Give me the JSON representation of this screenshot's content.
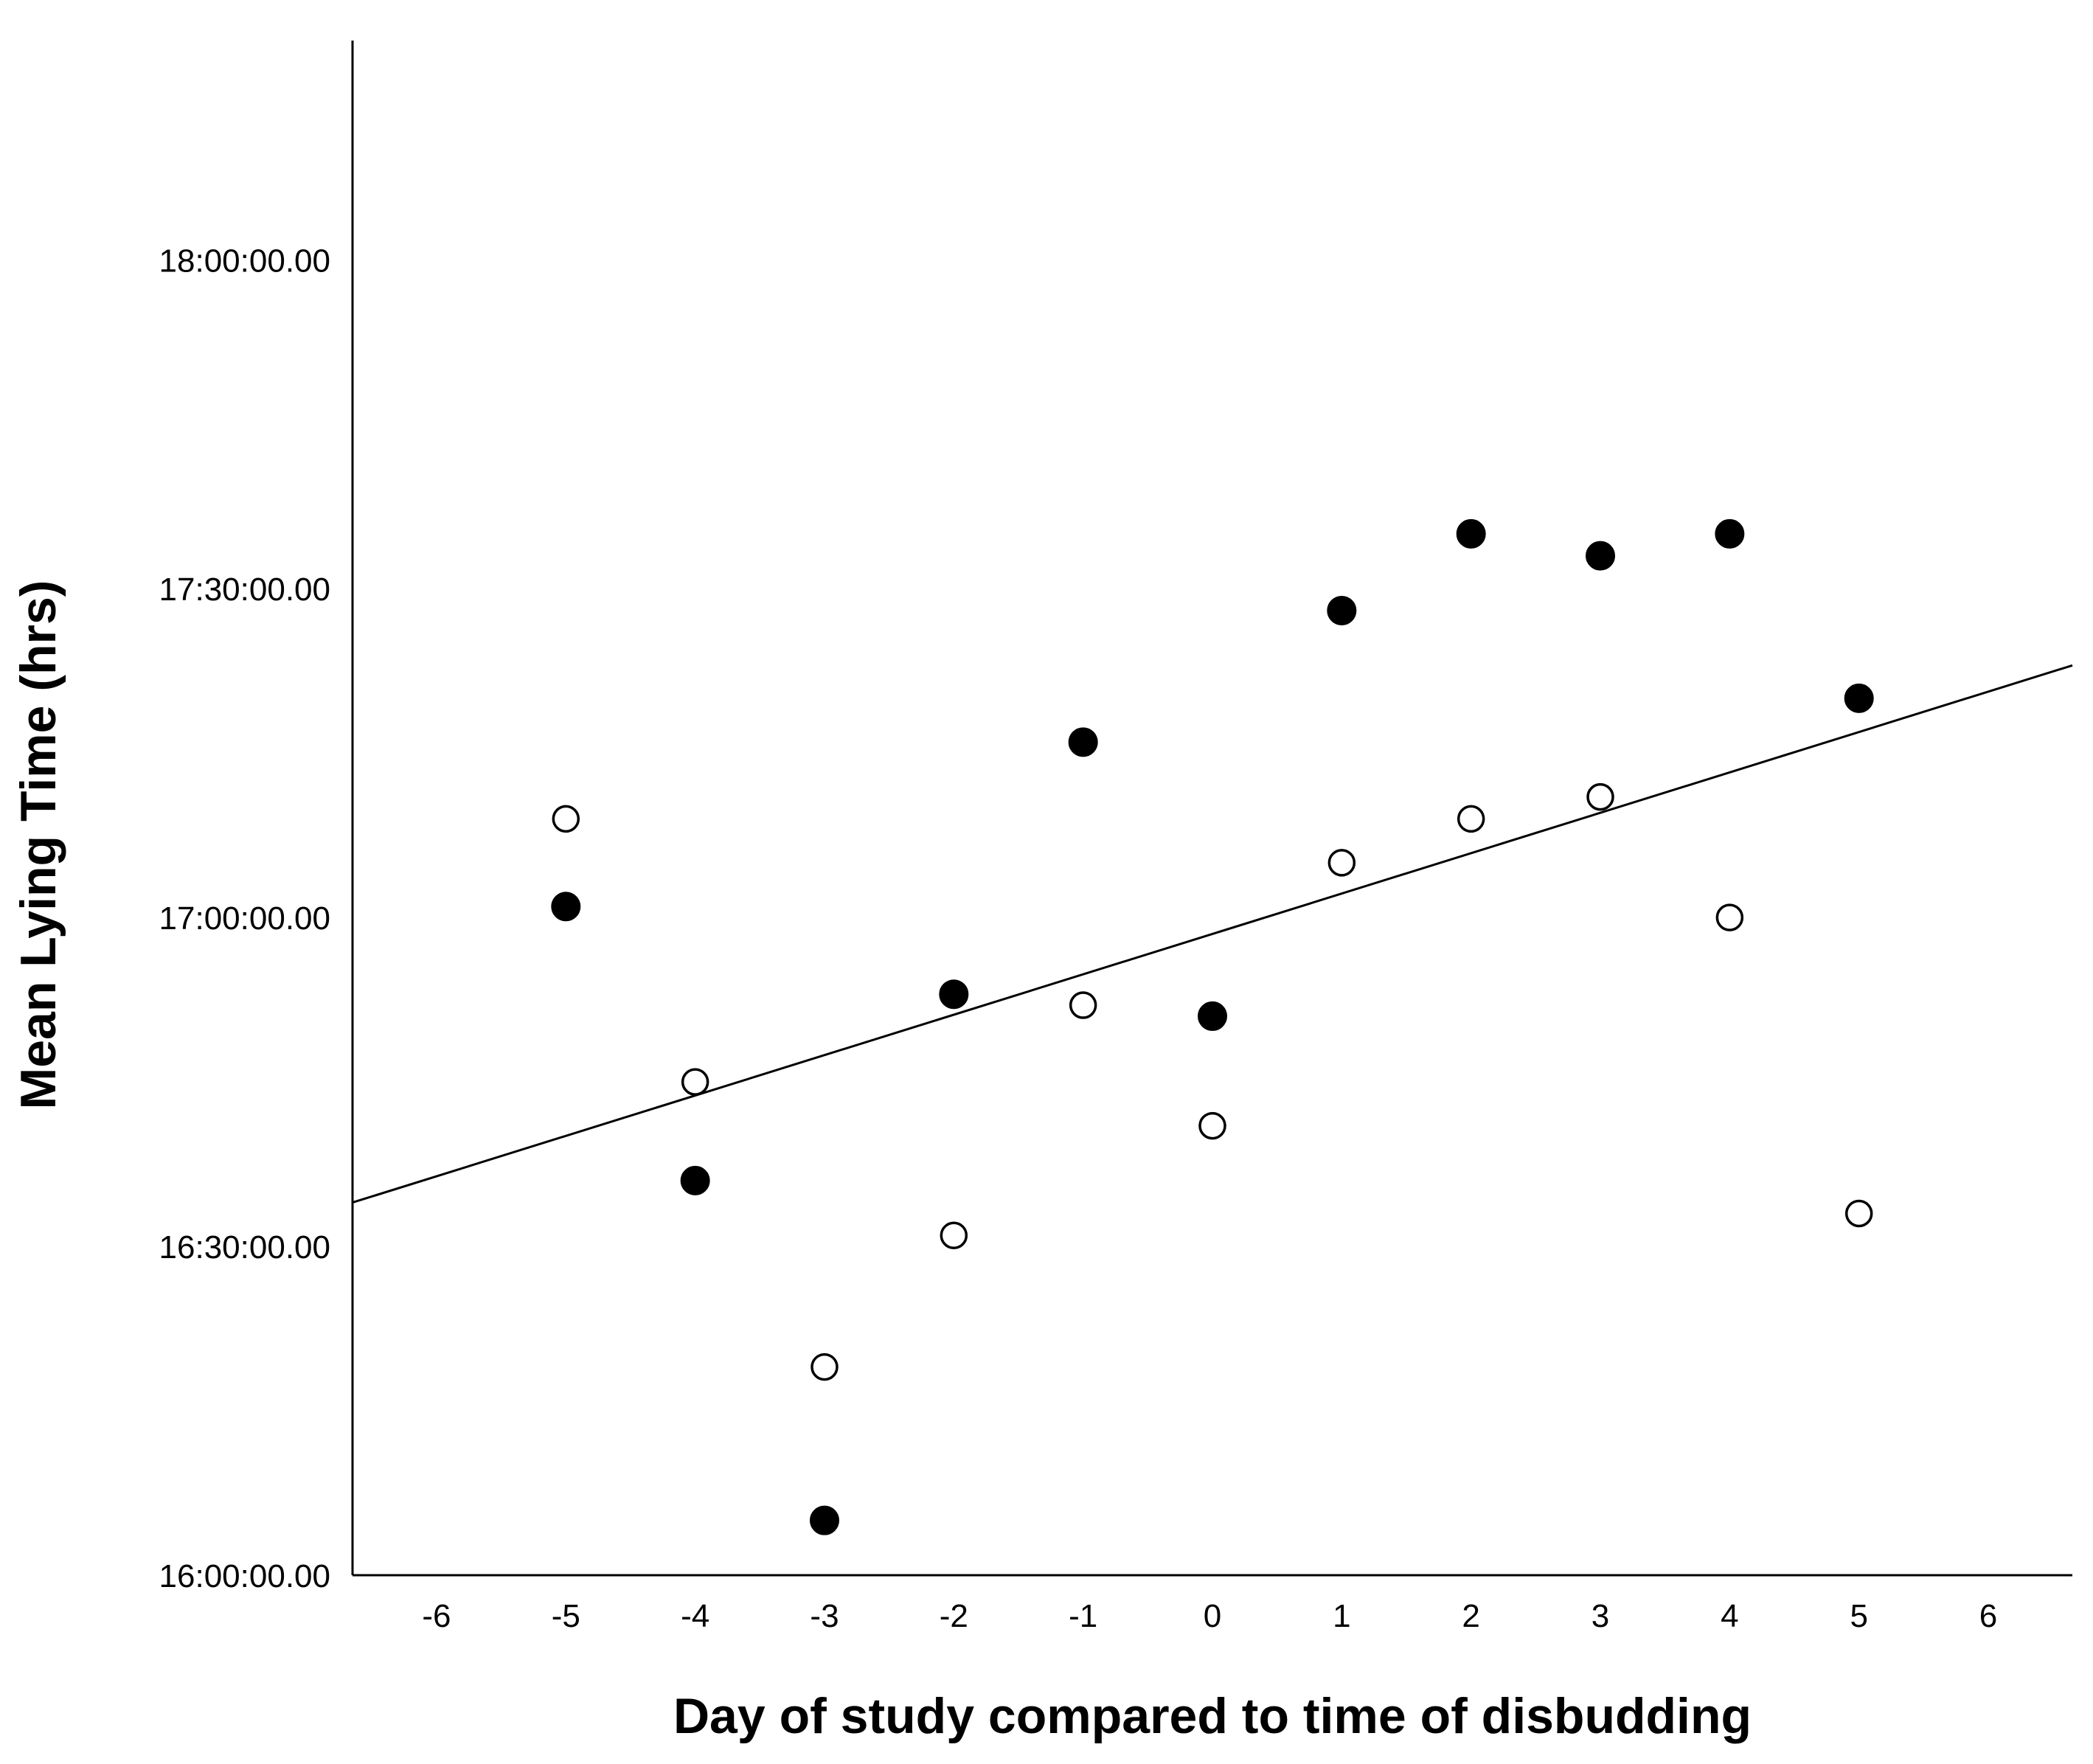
{
  "chart_data": {
    "type": "scatter",
    "title": "",
    "xlabel": "Day of study compared to time of disbudding",
    "ylabel": "Mean Lying Time (hrs)",
    "xlim": [
      -6.65,
      6.65
    ],
    "ylim": [
      "16:00:00",
      "18:20:00"
    ],
    "x_ticks": [
      -6,
      -5,
      -4,
      -3,
      -2,
      -1,
      0,
      1,
      2,
      3,
      4,
      5,
      6
    ],
    "x_tick_labels": [
      "-6",
      "-5",
      "-4",
      "-3",
      "-2",
      "-1",
      "0",
      "1",
      "2",
      "3",
      "4",
      "5",
      "6"
    ],
    "y_ticks": [
      "16:00:00",
      "16:30:00",
      "17:00:00",
      "17:30:00",
      "18:00:00"
    ],
    "y_tick_labels": [
      "16:00:00.00",
      "16:30:00.00",
      "17:00:00.00",
      "17:30:00.00",
      "18:00:00.00"
    ],
    "grid": false,
    "legend": "none",
    "series": [
      {
        "marker": "filled-circle",
        "color": "#000000",
        "points": [
          {
            "x": -5,
            "y": "17:01:00"
          },
          {
            "x": -4,
            "y": "16:36:00"
          },
          {
            "x": -3,
            "y": "16:05:00"
          },
          {
            "x": -2,
            "y": "16:53:00"
          },
          {
            "x": -1,
            "y": "17:16:00"
          },
          {
            "x": 0,
            "y": "16:51:00"
          },
          {
            "x": 1,
            "y": "17:28:00"
          },
          {
            "x": 2,
            "y": "17:35:00"
          },
          {
            "x": 3,
            "y": "17:33:00"
          },
          {
            "x": 4,
            "y": "17:35:00"
          },
          {
            "x": 5,
            "y": "17:20:00"
          }
        ]
      },
      {
        "marker": "open-circle",
        "color": "#000000",
        "points": [
          {
            "x": -5,
            "y": "17:09:00"
          },
          {
            "x": -4,
            "y": "16:45:00"
          },
          {
            "x": -3,
            "y": "16:19:00"
          },
          {
            "x": -2,
            "y": "16:31:00"
          },
          {
            "x": -1,
            "y": "16:52:00"
          },
          {
            "x": 0,
            "y": "16:41:00"
          },
          {
            "x": 1,
            "y": "17:05:00"
          },
          {
            "x": 2,
            "y": "17:09:00"
          },
          {
            "x": 3,
            "y": "17:11:00"
          },
          {
            "x": 4,
            "y": "17:00:00"
          },
          {
            "x": 5,
            "y": "16:33:00"
          }
        ]
      }
    ],
    "fit_line": {
      "type": "linear",
      "color": "#000000",
      "points": [
        {
          "x": -6.65,
          "y": "16:34:00"
        },
        {
          "x": 6.65,
          "y": "17:23:00"
        }
      ]
    }
  }
}
